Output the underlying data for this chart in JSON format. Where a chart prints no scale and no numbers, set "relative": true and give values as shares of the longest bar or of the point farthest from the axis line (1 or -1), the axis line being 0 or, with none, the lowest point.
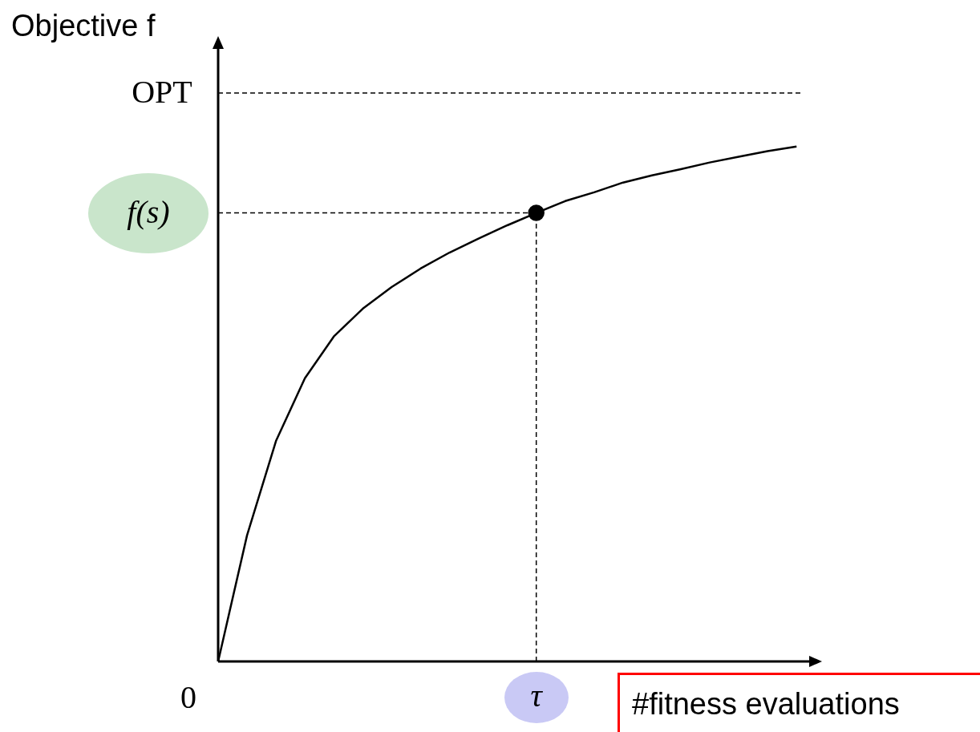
{
  "chart_data": {
    "type": "line",
    "relative": true,
    "xlabel": "#fitness evaluations",
    "ylabel": "Objective f",
    "categories": [
      null,
      null,
      null,
      null,
      null,
      null,
      null,
      null,
      null,
      null,
      null,
      null,
      null,
      null,
      null,
      null,
      null,
      null,
      null,
      null,
      null
    ],
    "annotations": [
      "0",
      "τ"
    ],
    "series": [
      {
        "color": "#000000",
        "marker": "none",
        "line_style": "solid",
        "values": [
          0,
          0.245,
          0.428,
          0.55,
          0.631,
          0.685,
          0.727,
          0.763,
          0.794,
          0.821,
          0.847,
          0.871,
          0.894,
          0.911,
          0.93,
          0.944,
          0.956,
          0.969,
          0.98,
          0.991,
          1
        ]
      },
      {
        "color": "#000000",
        "marker": "circle",
        "values": [
          null,
          null,
          null,
          null,
          null,
          null,
          null,
          null,
          null,
          null,
          null,
          0.871,
          null,
          null,
          null,
          null,
          null,
          null,
          null,
          null,
          null
        ]
      }
    ],
    "ref_lines": [
      {
        "axis": "y",
        "value": 1.104,
        "label": "OPT",
        "line_style": "dashed"
      },
      {
        "axis": "y",
        "value": 0.871,
        "label": "f(s)",
        "line_style": "dashed"
      }
    ]
  }
}
